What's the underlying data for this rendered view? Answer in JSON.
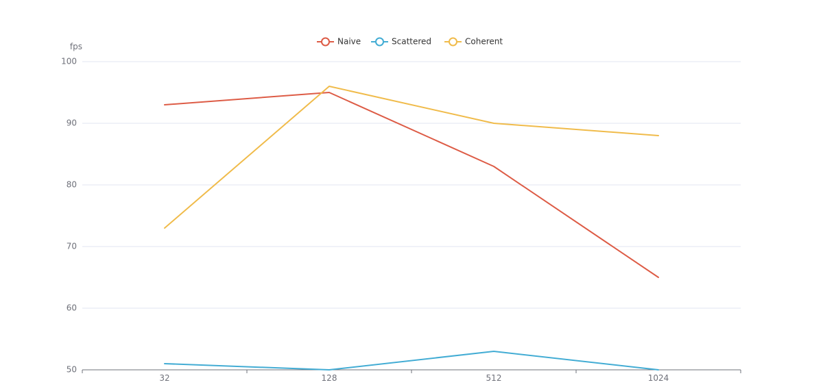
{
  "chart_data": {
    "type": "line",
    "title": "",
    "xlabel": "",
    "ylabel": "fps",
    "categories": [
      "32",
      "128",
      "512",
      "1024"
    ],
    "ylim": [
      50,
      100
    ],
    "yticks": [
      50,
      60,
      70,
      80,
      90,
      100
    ],
    "grid": true,
    "legend_position": "top-center",
    "series": [
      {
        "name": "Naive",
        "color": "#dd5b45",
        "values": [
          93,
          95,
          83,
          65
        ]
      },
      {
        "name": "Scattered",
        "color": "#42acd4",
        "values": [
          51,
          50,
          53,
          50
        ]
      },
      {
        "name": "Coherent",
        "color": "#f0bb4a",
        "values": [
          73,
          96,
          90,
          88
        ]
      }
    ]
  }
}
